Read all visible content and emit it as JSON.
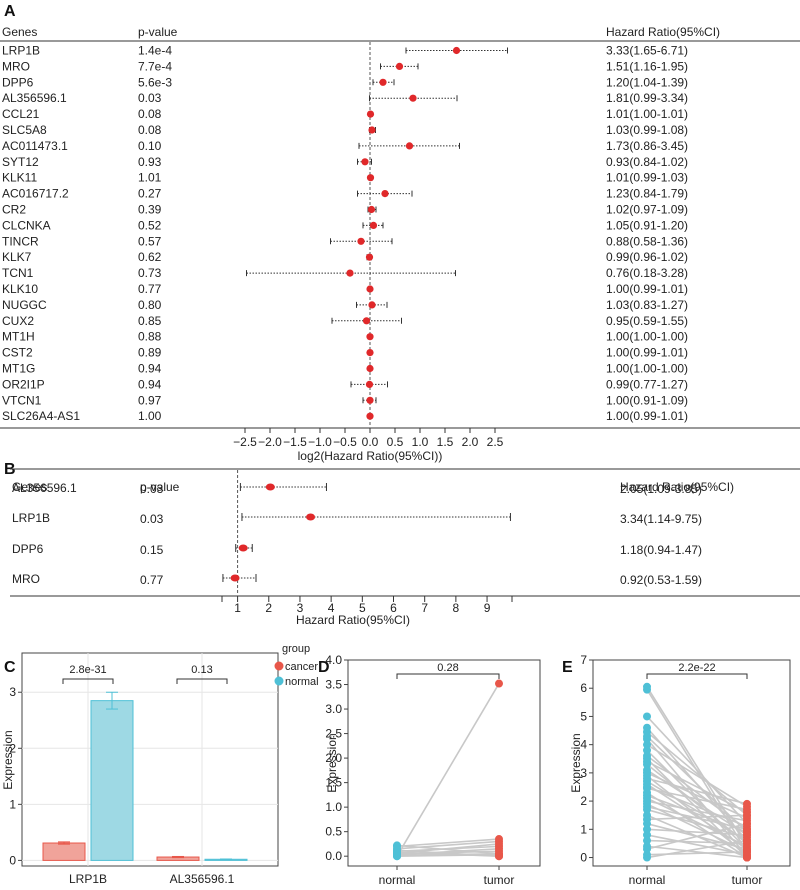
{
  "colors": {
    "point": "#e0282a",
    "cancer": "#e8574a",
    "normal": "#4ec0d6",
    "bar_cancer": "#f0a39a",
    "bar_normal": "#9ed9e4",
    "line": "#c8c8c8",
    "grid": "#e6e6e6"
  },
  "chart_data": [
    {
      "panel": "A",
      "type": "forest",
      "headers": {
        "genes": "Genes",
        "pvalue": "p-value",
        "hr": "Hazard Ratio(95%CI)"
      },
      "xlabel": "log2(Hazard Ratio(95%CI))",
      "xlim": [
        -2.7,
        2.8
      ],
      "ticks": [
        -2.5,
        -2.0,
        -1.5,
        -1.0,
        -0.5,
        0.0,
        0.5,
        1.0,
        1.5,
        2.0,
        2.5
      ],
      "tick_labels": [
        "−2.5",
        "−2.0",
        "−1.5",
        "−1.0",
        "−0.5",
        "0.0",
        "0.5",
        "1.0",
        "1.5",
        "2.0",
        "2.5"
      ],
      "rows": [
        {
          "gene": "LRP1B",
          "p": "1.4e-4",
          "est": 1.73,
          "lo": 0.72,
          "hi": 2.75,
          "hr": "3.33(1.65-6.71)"
        },
        {
          "gene": "MRO",
          "p": "7.7e-4",
          "est": 0.59,
          "lo": 0.21,
          "hi": 0.96,
          "hr": "1.51(1.16-1.95)"
        },
        {
          "gene": "DPP6",
          "p": "5.6e-3",
          "est": 0.26,
          "lo": 0.06,
          "hi": 0.48,
          "hr": "1.20(1.04-1.39)"
        },
        {
          "gene": "AL356596.1",
          "p": "0.03",
          "est": 0.86,
          "lo": -0.01,
          "hi": 1.74,
          "hr": "1.81(0.99-3.34)"
        },
        {
          "gene": "CCL21",
          "p": "0.08",
          "est": 0.01,
          "lo": 0.0,
          "hi": 0.02,
          "hr": "1.01(1.00-1.01)"
        },
        {
          "gene": "SLC5A8",
          "p": "0.08",
          "est": 0.04,
          "lo": -0.01,
          "hi": 0.11,
          "hr": "1.03(0.99-1.08)"
        },
        {
          "gene": "AC011473.1",
          "p": "0.10",
          "est": 0.79,
          "lo": -0.22,
          "hi": 1.79,
          "hr": "1.73(0.86-3.45)"
        },
        {
          "gene": "SYT12",
          "p": "0.93",
          "est": -0.1,
          "lo": -0.25,
          "hi": 0.03,
          "hr": "0.93(0.84-1.02)"
        },
        {
          "gene": "KLK11",
          "p": "1.01",
          "est": 0.01,
          "lo": -0.01,
          "hi": 0.04,
          "hr": "1.01(0.99-1.03)"
        },
        {
          "gene": "AC016717.2",
          "p": "0.27",
          "est": 0.3,
          "lo": -0.25,
          "hi": 0.84,
          "hr": "1.23(0.84-1.79)"
        },
        {
          "gene": "CR2",
          "p": "0.39",
          "est": 0.03,
          "lo": -0.04,
          "hi": 0.12,
          "hr": "1.02(0.97-1.09)"
        },
        {
          "gene": "CLCNKA",
          "p": "0.52",
          "est": 0.07,
          "lo": -0.14,
          "hi": 0.26,
          "hr": "1.05(0.91-1.20)"
        },
        {
          "gene": "TINCR",
          "p": "0.57",
          "est": -0.18,
          "lo": -0.79,
          "hi": 0.44,
          "hr": "0.88(0.58-1.36)"
        },
        {
          "gene": "KLK7",
          "p": "0.62",
          "est": -0.01,
          "lo": -0.06,
          "hi": 0.03,
          "hr": "0.99(0.96-1.02)"
        },
        {
          "gene": "TCN1",
          "p": "0.73",
          "est": -0.4,
          "lo": -2.47,
          "hi": 1.71,
          "hr": "0.76(0.18-3.28)"
        },
        {
          "gene": "KLK10",
          "p": "0.77",
          "est": 0.0,
          "lo": -0.01,
          "hi": 0.01,
          "hr": "1.00(0.99-1.01)"
        },
        {
          "gene": "NUGGC",
          "p": "0.80",
          "est": 0.04,
          "lo": -0.27,
          "hi": 0.34,
          "hr": "1.03(0.83-1.27)"
        },
        {
          "gene": "CUX2",
          "p": "0.85",
          "est": -0.07,
          "lo": -0.76,
          "hi": 0.63,
          "hr": "0.95(0.59-1.55)"
        },
        {
          "gene": "MT1H",
          "p": "0.88",
          "est": 0.0,
          "lo": 0.0,
          "hi": 0.0,
          "hr": "1.00(1.00-1.00)"
        },
        {
          "gene": "CST2",
          "p": "0.89",
          "est": 0.0,
          "lo": -0.01,
          "hi": 0.01,
          "hr": "1.00(0.99-1.01)"
        },
        {
          "gene": "MT1G",
          "p": "0.94",
          "est": 0.0,
          "lo": 0.0,
          "hi": 0.0,
          "hr": "1.00(1.00-1.00)"
        },
        {
          "gene": "OR2I1P",
          "p": "0.94",
          "est": -0.01,
          "lo": -0.38,
          "hi": 0.35,
          "hr": "0.99(0.77-1.27)"
        },
        {
          "gene": "VTCN1",
          "p": "0.97",
          "est": 0.0,
          "lo": -0.14,
          "hi": 0.12,
          "hr": "1.00(0.91-1.09)"
        },
        {
          "gene": "SLC26A4-AS1",
          "p": "1.00",
          "est": 0.0,
          "lo": -0.01,
          "hi": 0.01,
          "hr": "1.00(0.99-1.01)"
        }
      ]
    },
    {
      "panel": "B",
      "type": "forest",
      "headers": {
        "genes": "Genes",
        "pvalue": "p-value",
        "hr": "Hazard Ratio(95%CI)"
      },
      "xlabel": "Hazard Ratio(95%CI)",
      "xlim": [
        0.5,
        9.8
      ],
      "ticks": [
        1,
        2,
        3,
        4,
        5,
        6,
        7,
        8,
        9
      ],
      "tick_labels": [
        "1",
        "2",
        "3",
        "4",
        "5",
        "6",
        "7",
        "8",
        "9"
      ],
      "rows": [
        {
          "gene": "AL356596.1",
          "p": "0.03",
          "est": 2.05,
          "lo": 1.09,
          "hi": 3.85,
          "hr": "2.05(1.09-3.85)"
        },
        {
          "gene": "LRP1B",
          "p": "0.03",
          "est": 3.34,
          "lo": 1.14,
          "hi": 9.75,
          "hr": "3.34(1.14-9.75)"
        },
        {
          "gene": "DPP6",
          "p": "0.15",
          "est": 1.18,
          "lo": 0.94,
          "hi": 1.47,
          "hr": "1.18(0.94-1.47)"
        },
        {
          "gene": "MRO",
          "p": "0.77",
          "est": 0.92,
          "lo": 0.53,
          "hi": 1.59,
          "hr": "0.92(0.53-1.59)"
        }
      ]
    },
    {
      "panel": "C",
      "type": "bar",
      "ylabel": "Expression",
      "ylim": [
        -0.1,
        3.7
      ],
      "yticks": [
        0,
        1,
        2,
        3
      ],
      "categories": [
        "LRP1B",
        "AL356596.1"
      ],
      "series": [
        {
          "name": "cancer",
          "values": [
            0.31,
            0.06
          ],
          "err": [
            0.02,
            0.01
          ]
        },
        {
          "name": "normal",
          "values": [
            2.85,
            0.02
          ],
          "err": [
            0.15,
            0.005
          ]
        }
      ],
      "pvalues": [
        "2.8e-31",
        "0.13"
      ],
      "legend": {
        "title": "group",
        "items": [
          "cancer",
          "normal"
        ]
      }
    },
    {
      "panel": "D",
      "type": "paired-scatter",
      "ylabel": "Expression",
      "ylim": [
        -0.2,
        4.0
      ],
      "yticks": [
        0.0,
        0.5,
        1.0,
        1.5,
        2.0,
        2.5,
        3.0,
        3.5,
        4.0
      ],
      "ytick_labels": [
        "0.0",
        "0.5",
        "1.0",
        "1.5",
        "2.0",
        "2.5",
        "3.0",
        "3.5",
        "4.0"
      ],
      "categories": [
        "normal",
        "tumor"
      ],
      "pvalue": "0.28",
      "pairs": [
        [
          0.0,
          3.52
        ],
        [
          0.02,
          0.05
        ],
        [
          0.05,
          0.1
        ],
        [
          0.1,
          0.2
        ],
        [
          0.15,
          0.3
        ],
        [
          0.2,
          0.35
        ],
        [
          0.08,
          0.0
        ],
        [
          0.0,
          0.03
        ],
        [
          0.03,
          0.15
        ],
        [
          0.12,
          0.0
        ],
        [
          0.06,
          0.25
        ],
        [
          0.22,
          0.05
        ]
      ]
    },
    {
      "panel": "E",
      "type": "paired-scatter",
      "ylabel": "Expression",
      "ylim": [
        -0.3,
        7.0
      ],
      "yticks": [
        0,
        1,
        2,
        3,
        4,
        5,
        6,
        7
      ],
      "ytick_labels": [
        "0",
        "1",
        "2",
        "3",
        "4",
        "5",
        "6",
        "7"
      ],
      "categories": [
        "normal",
        "tumor"
      ],
      "pvalue": "2.2e-22",
      "pairs": [
        [
          6.05,
          0.4
        ],
        [
          5.95,
          0.2
        ],
        [
          5.0,
          1.2
        ],
        [
          4.6,
          0.6
        ],
        [
          4.45,
          1.5
        ],
        [
          4.3,
          0.9
        ],
        [
          4.2,
          0.05
        ],
        [
          4.0,
          1.8
        ],
        [
          3.8,
          0.3
        ],
        [
          3.6,
          1.0
        ],
        [
          3.5,
          0.0
        ],
        [
          3.4,
          1.6
        ],
        [
          3.3,
          0.5
        ],
        [
          3.1,
          0.8
        ],
        [
          3.0,
          1.4
        ],
        [
          2.9,
          0.1
        ],
        [
          2.8,
          1.9
        ],
        [
          2.7,
          0.6
        ],
        [
          2.6,
          0.3
        ],
        [
          2.5,
          1.1
        ],
        [
          2.45,
          1.7
        ],
        [
          2.3,
          0.0
        ],
        [
          2.2,
          0.9
        ],
        [
          2.1,
          0.4
        ],
        [
          2.0,
          1.3
        ],
        [
          1.9,
          0.2
        ],
        [
          1.8,
          1.0
        ],
        [
          1.7,
          0.7
        ],
        [
          1.5,
          0.0
        ],
        [
          1.35,
          1.5
        ],
        [
          1.2,
          0.3
        ],
        [
          1.0,
          0.8
        ],
        [
          0.8,
          0.1
        ],
        [
          0.6,
          0.5
        ],
        [
          0.4,
          0.0
        ],
        [
          0.3,
          1.2
        ],
        [
          0.1,
          0.2
        ],
        [
          0.0,
          0.6
        ]
      ]
    }
  ]
}
